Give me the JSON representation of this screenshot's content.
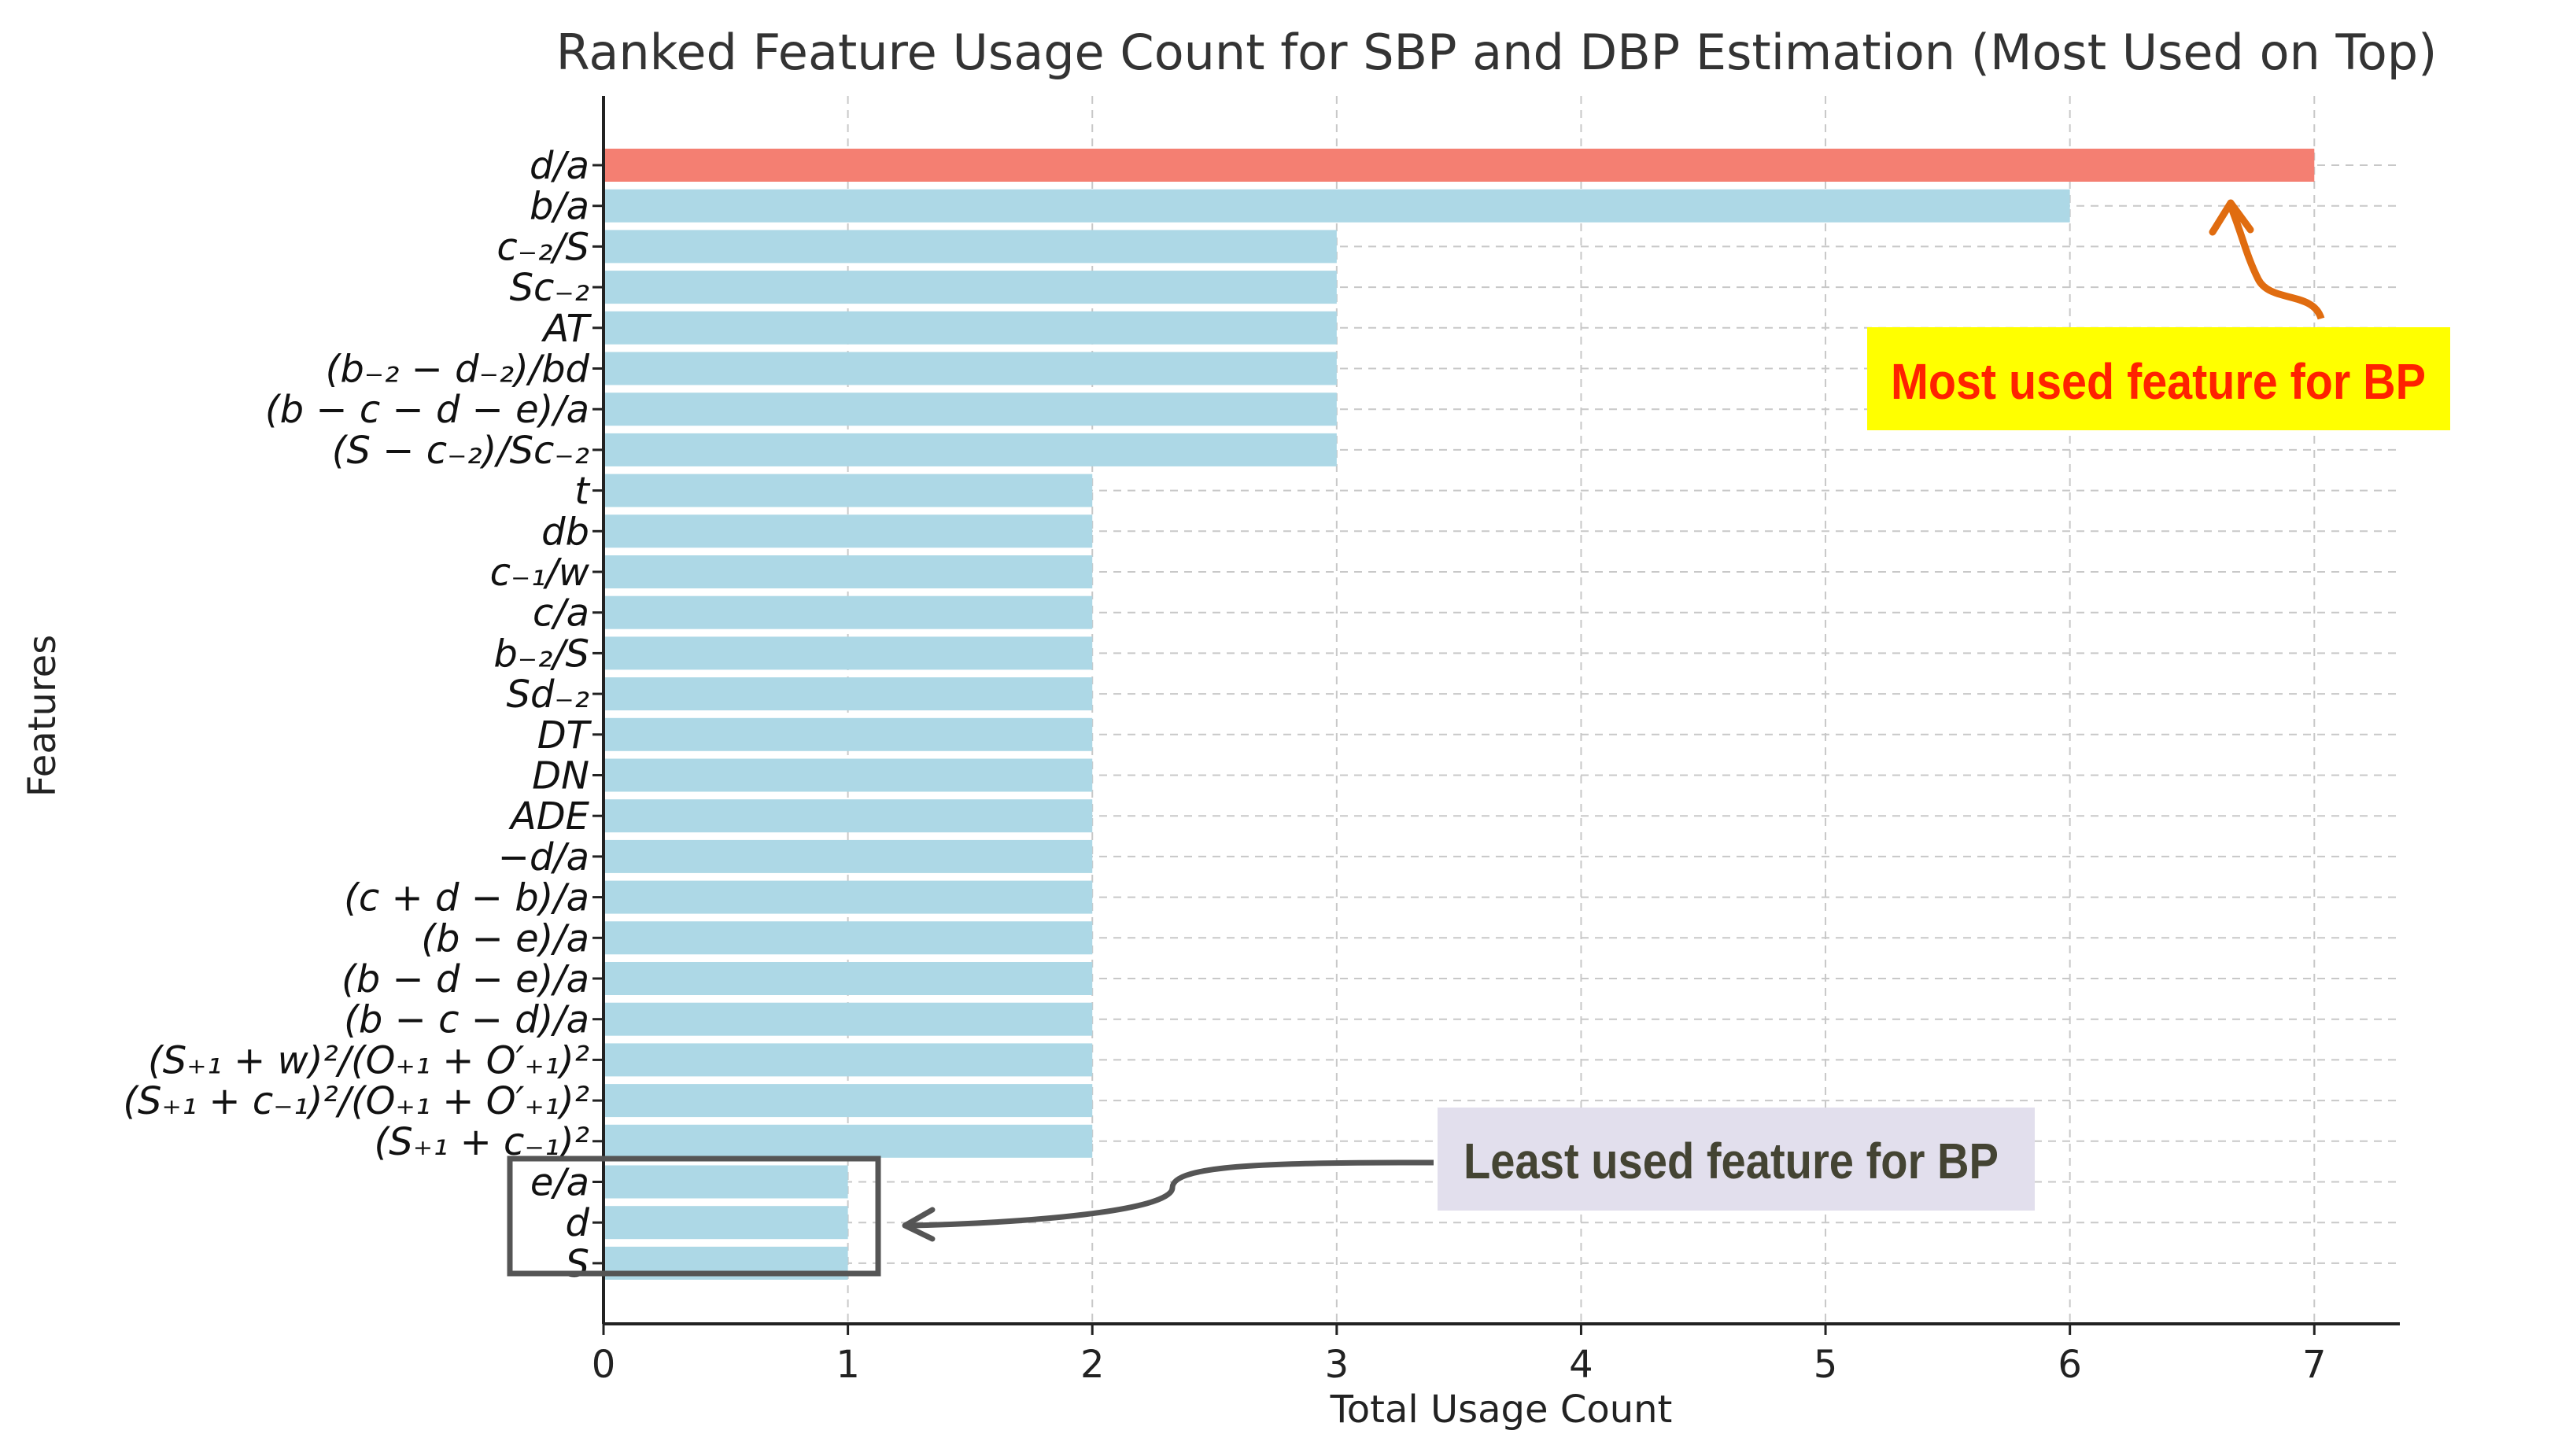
{
  "chart_data": {
    "type": "bar",
    "orientation": "horizontal",
    "title": "Ranked Feature Usage Count for SBP and DBP Estimation (Most Used on Top)",
    "xlabel": "Total Usage Count",
    "ylabel": "Features",
    "xlim": [
      0,
      7.35
    ],
    "xticks": [
      "0",
      "1",
      "2",
      "3",
      "4",
      "5",
      "6",
      "7"
    ],
    "grid": true,
    "categories": [
      {
        "label": "d/a"
      },
      {
        "label": "b/a"
      },
      {
        "label": "c₋₂/S"
      },
      {
        "label": "Sc₋₂"
      },
      {
        "label": "AT"
      },
      {
        "label": "(b₋₂ − d₋₂)/bd"
      },
      {
        "label": "(b − c − d − e)/a"
      },
      {
        "label": "(S − c₋₂)/Sc₋₂"
      },
      {
        "label": "t"
      },
      {
        "label": "db"
      },
      {
        "label": "c₋₁/w"
      },
      {
        "label": "c/a"
      },
      {
        "label": "b₋₂/S"
      },
      {
        "label": "Sd₋₂"
      },
      {
        "label": "DT"
      },
      {
        "label": "DN"
      },
      {
        "label": "ADE"
      },
      {
        "label": "−d/a"
      },
      {
        "label": "(c + d − b)/a"
      },
      {
        "label": "(b − e)/a"
      },
      {
        "label": "(b − d − e)/a"
      },
      {
        "label": "(b − c − d)/a"
      },
      {
        "label": "(S₊₁ + w)²/(O₊₁ + O′₊₁)²"
      },
      {
        "label": "(S₊₁ + c₋₁)²/(O₊₁ + O′₊₁)²"
      },
      {
        "label": "(S₊₁ + c₋₁)²"
      },
      {
        "label": "e/a"
      },
      {
        "label": "d"
      },
      {
        "label": "S"
      }
    ],
    "values": [
      7,
      6,
      3,
      3,
      3,
      3,
      3,
      3,
      2,
      2,
      2,
      2,
      2,
      2,
      2,
      2,
      2,
      2,
      2,
      2,
      2,
      2,
      2,
      2,
      2,
      1,
      1,
      1
    ],
    "highlight_index": 0,
    "colors": {
      "highlight": "#f47f72",
      "bar": "#add8e6",
      "arrow_hi": "#e06c10",
      "arrow_lo": "#555555",
      "box": "#555555",
      "annot_hi_bg": "#ffff00",
      "annot_lo_bg": "#e2dfed"
    },
    "annotations": {
      "most_used": "Most used feature for BP",
      "least_used": "Least used feature for BP"
    }
  }
}
